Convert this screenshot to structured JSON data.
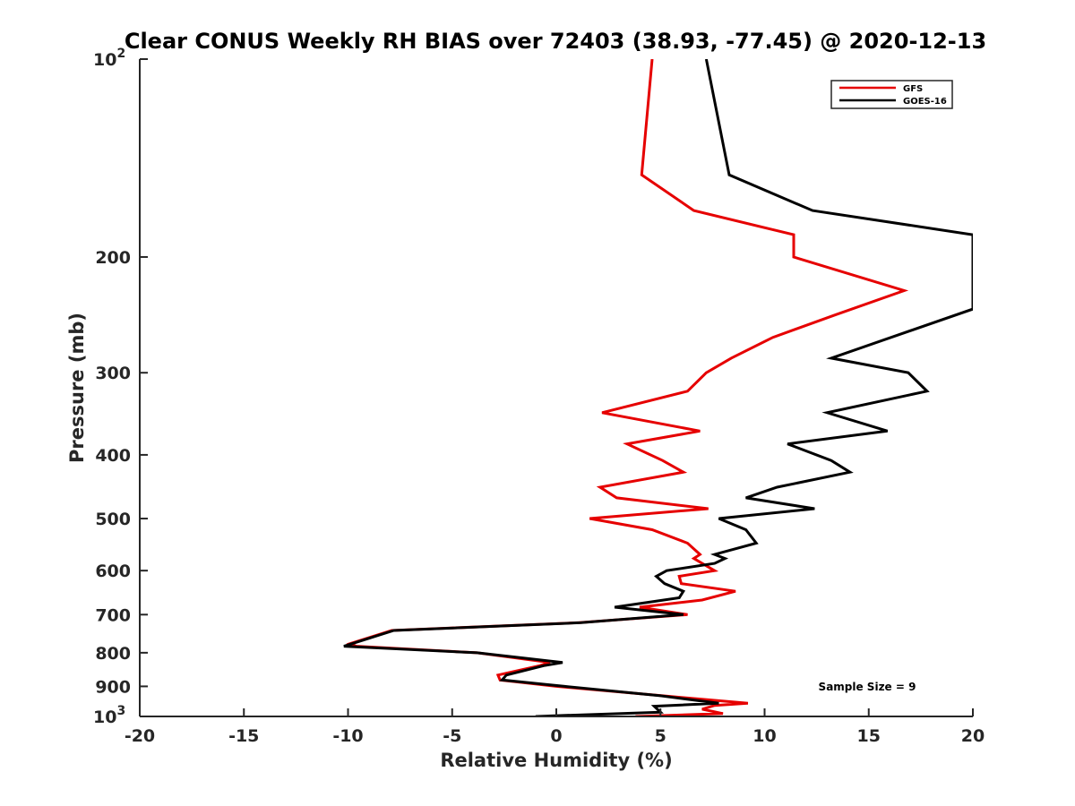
{
  "chart_data": {
    "type": "line",
    "title": "Clear CONUS Weekly RH BIAS over 72403 (38.93, -77.45) @ 2020-12-13",
    "xlabel": "Relative Humidity (%)",
    "ylabel": "Pressure (mb)",
    "xlim": [
      -20,
      20
    ],
    "ylim": [
      100,
      1000
    ],
    "yscale": "log",
    "y_reversed": true,
    "x_ticks": [
      -20,
      -15,
      -10,
      -5,
      0,
      5,
      10,
      15,
      20
    ],
    "x_tick_labels": [
      "-20",
      "-15",
      "-10",
      "-5",
      "0",
      "5",
      "10",
      "15",
      "20"
    ],
    "y_ticks": [
      100,
      200,
      300,
      400,
      500,
      600,
      700,
      800,
      900,
      1000
    ],
    "y_tick_labels": [
      {
        "base": "10",
        "exp": "2"
      },
      {
        "base": "200",
        "exp": ""
      },
      {
        "base": "300",
        "exp": ""
      },
      {
        "base": "400",
        "exp": ""
      },
      {
        "base": "500",
        "exp": ""
      },
      {
        "base": "600",
        "exp": ""
      },
      {
        "base": "700",
        "exp": ""
      },
      {
        "base": "800",
        "exp": ""
      },
      {
        "base": "900",
        "exp": ""
      },
      {
        "base": "10",
        "exp": "3"
      }
    ],
    "grid": false,
    "legend_position": "top-right",
    "annotation": "Sample Size = 9",
    "series": [
      {
        "name": "GFS",
        "color": "#e60000",
        "points": [
          [
            4.6,
            100
          ],
          [
            4.1,
            150
          ],
          [
            6.6,
            170
          ],
          [
            11.4,
            185
          ],
          [
            11.4,
            200
          ],
          [
            16.7,
            225
          ],
          [
            13.4,
            245
          ],
          [
            10.4,
            265
          ],
          [
            8.4,
            285
          ],
          [
            7.2,
            300
          ],
          [
            6.3,
            320
          ],
          [
            2.2,
            345
          ],
          [
            6.9,
            368
          ],
          [
            3.4,
            385
          ],
          [
            5.1,
            408
          ],
          [
            6.1,
            425
          ],
          [
            2.1,
            448
          ],
          [
            2.9,
            465
          ],
          [
            7.3,
            483
          ],
          [
            1.6,
            500
          ],
          [
            4.6,
            520
          ],
          [
            6.3,
            545
          ],
          [
            6.9,
            567
          ],
          [
            6.6,
            575
          ],
          [
            7.0,
            585
          ],
          [
            7.6,
            600
          ],
          [
            5.9,
            612
          ],
          [
            6.0,
            628
          ],
          [
            8.6,
            645
          ],
          [
            7.0,
            665
          ],
          [
            4.0,
            682
          ],
          [
            6.3,
            700
          ],
          [
            1.1,
            720
          ],
          [
            -7.9,
            740
          ],
          [
            -9.9,
            775
          ],
          [
            -9.6,
            782
          ],
          [
            -3.8,
            800
          ],
          [
            -0.3,
            828
          ],
          [
            -0.8,
            837
          ],
          [
            -2.8,
            865
          ],
          [
            -2.7,
            880
          ],
          [
            0.0,
            900
          ],
          [
            5.1,
            930
          ],
          [
            9.2,
            955
          ],
          [
            7.6,
            962
          ],
          [
            7.0,
            975
          ],
          [
            8.0,
            990
          ],
          [
            3.8,
            1000
          ]
        ]
      },
      {
        "name": "GOES-16",
        "color": "#000000",
        "points": [
          [
            7.2,
            100
          ],
          [
            8.3,
            150
          ],
          [
            12.3,
            170
          ],
          [
            20.0,
            185
          ],
          [
            20.0,
            240
          ],
          [
            13.2,
            285
          ],
          [
            16.9,
            300
          ],
          [
            17.8,
            320
          ],
          [
            13.0,
            345
          ],
          [
            15.9,
            368
          ],
          [
            11.1,
            385
          ],
          [
            13.2,
            408
          ],
          [
            14.1,
            425
          ],
          [
            10.6,
            448
          ],
          [
            9.1,
            465
          ],
          [
            12.4,
            483
          ],
          [
            7.8,
            500
          ],
          [
            9.1,
            520
          ],
          [
            9.6,
            545
          ],
          [
            7.6,
            567
          ],
          [
            8.1,
            575
          ],
          [
            7.6,
            585
          ],
          [
            5.3,
            600
          ],
          [
            4.8,
            612
          ],
          [
            5.2,
            628
          ],
          [
            6.1,
            645
          ],
          [
            5.9,
            660
          ],
          [
            2.8,
            682
          ],
          [
            6.1,
            700
          ],
          [
            1.2,
            720
          ],
          [
            -7.8,
            740
          ],
          [
            -9.8,
            775
          ],
          [
            -10.2,
            782
          ],
          [
            -3.8,
            800
          ],
          [
            0.3,
            828
          ],
          [
            -0.6,
            837
          ],
          [
            -2.4,
            865
          ],
          [
            -2.6,
            880
          ],
          [
            0.4,
            900
          ],
          [
            5.0,
            930
          ],
          [
            7.8,
            955
          ],
          [
            4.7,
            965
          ],
          [
            5.0,
            985
          ],
          [
            -1.0,
            1000
          ]
        ]
      }
    ]
  }
}
